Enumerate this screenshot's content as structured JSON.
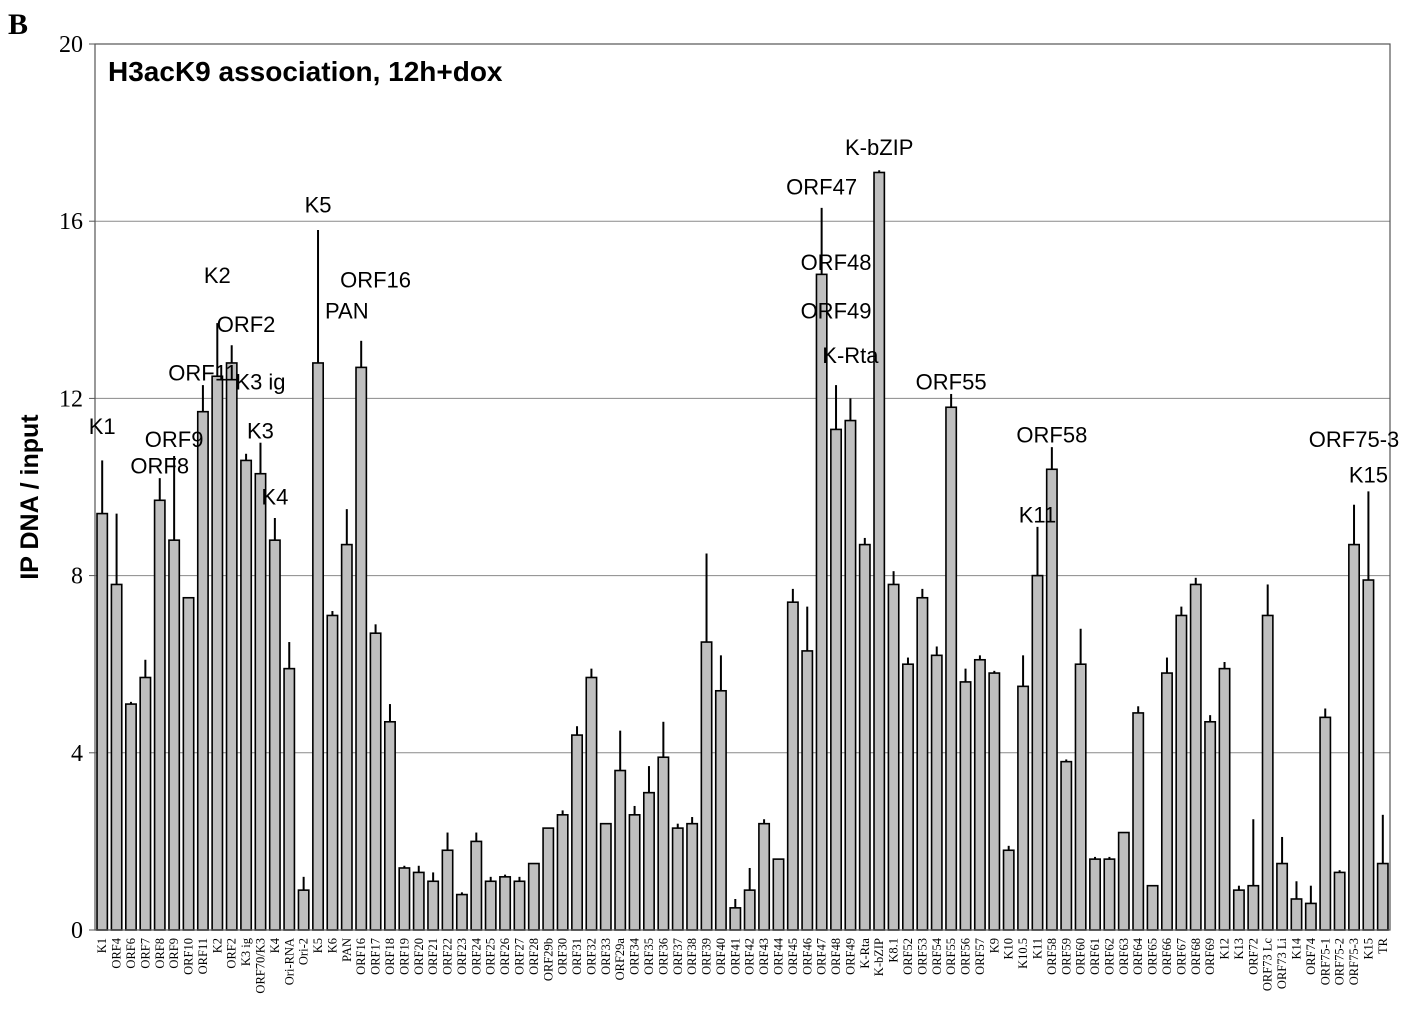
{
  "panel_label": "B",
  "chart_data": {
    "type": "bar",
    "title": "H3acK9 association, 12h+dox",
    "xlabel": "",
    "ylabel": "IP DNA / input",
    "ylim": [
      0,
      20
    ],
    "yticks": [
      0,
      4,
      8,
      12,
      16,
      20
    ],
    "grid": true,
    "bar_color": "#bfbfbf",
    "categories": [
      "K1",
      "ORF4",
      "ORF6",
      "ORF7",
      "ORF8",
      "ORF9",
      "ORF10",
      "ORF11",
      "K2",
      "ORF2",
      "K3 ig",
      "K3",
      "K4",
      "Ori-RNA",
      "Ori-2",
      "K5",
      "K6",
      "PAN",
      "ORF16",
      "ORF17",
      "ORF18",
      "ORF19",
      "ORF20",
      "ORF21",
      "ORF22",
      "ORF23",
      "ORF24",
      "ORF25",
      "ORF26",
      "ORF27",
      "ORF28",
      "ORF29b",
      "ORF30",
      "ORF31",
      "ORF32",
      "ORF33",
      "ORF29a",
      "ORF34",
      "ORF35",
      "ORF36",
      "ORF37",
      "ORF38",
      "ORF39",
      "ORF40",
      "ORF41",
      "ORF42",
      "ORF43",
      "ORF44",
      "ORF45",
      "ORF46",
      "ORF47",
      "ORF48",
      "ORF49",
      "K-Rta",
      "K-bZIP",
      "K8.1",
      "ORF52",
      "ORF53",
      "ORF54",
      "ORF55",
      "ORF56",
      "ORF57",
      "K9",
      "K10",
      "K10.5",
      "K11",
      "ORF58",
      "ORF59",
      "ORF60",
      "ORF61",
      "ORF62",
      "ORF63",
      "ORF64",
      "ORF65",
      "ORF66",
      "ORF67",
      "ORF68",
      "ORF69",
      "K12",
      "K13",
      "ORF72",
      "ORF73 Lc",
      "ORF73 Li",
      "K14",
      "ORF74",
      "ORF75-1",
      "ORF75-2",
      "ORF75-3",
      "K15",
      "TR"
    ],
    "tick_labels": [
      "K1",
      "ORF4",
      "ORF6",
      "ORF7",
      "ORF8",
      "ORF9",
      "ORF10",
      "ORF11",
      "K2",
      "ORF2",
      "K3 ig",
      "ORF70/K3",
      "K4",
      "Ori-RNA",
      "Ori-2",
      "K5",
      "K6",
      "PAN",
      "ORF16",
      "ORF17",
      "ORF18",
      "ORF19",
      "ORF20",
      "ORF21",
      "ORF22",
      "ORF23",
      "ORF24",
      "ORF25",
      "ORF26",
      "ORF27",
      "ORF28",
      "ORF29b",
      "ORF30",
      "ORF31",
      "ORF32",
      "ORF33",
      "ORF29a",
      "ORF34",
      "ORF35",
      "ORF36",
      "ORF37",
      "ORF38",
      "ORF39",
      "ORF40",
      "ORF41",
      "ORF42",
      "ORF43",
      "ORF44",
      "ORF45",
      "ORF46",
      "ORF47",
      "ORF48",
      "ORF49",
      "K-Rta",
      "K-bZIP",
      "K8.1",
      "ORF52",
      "ORF53",
      "ORF54",
      "ORF55",
      "ORF56",
      "ORF57",
      "K9",
      "K10",
      "K10.5",
      "K11",
      "ORF58",
      "ORF59",
      "ORF60",
      "ORF61",
      "ORF62",
      "ORF63",
      "ORF64",
      "ORF65",
      "ORF66",
      "ORF67",
      "ORF68",
      "ORF69",
      "K12",
      "K13",
      "ORF72",
      "ORF73 Lc",
      "ORF73 Li",
      "K14",
      "ORF74",
      "ORF75-1",
      "ORF75-2",
      "ORF75-3",
      "K15",
      "TR"
    ],
    "values": [
      9.4,
      7.8,
      5.1,
      5.7,
      9.7,
      8.8,
      7.5,
      11.7,
      12.5,
      12.8,
      10.6,
      10.3,
      8.8,
      5.9,
      0.9,
      12.8,
      7.1,
      8.7,
      12.7,
      6.7,
      4.7,
      1.4,
      1.3,
      1.1,
      1.8,
      0.8,
      2.0,
      1.1,
      1.2,
      1.1,
      1.5,
      2.3,
      2.6,
      4.4,
      5.7,
      2.4,
      3.6,
      2.6,
      3.1,
      3.9,
      2.3,
      2.4,
      6.5,
      5.4,
      0.5,
      0.9,
      2.4,
      1.6,
      7.4,
      6.3,
      14.8,
      11.3,
      11.5,
      8.7,
      17.1,
      7.8,
      6.0,
      7.5,
      6.2,
      11.8,
      5.6,
      6.1,
      5.8,
      1.8,
      5.5,
      8.0,
      10.4,
      3.8,
      6.0,
      1.6,
      1.6,
      2.2,
      4.9,
      1.0,
      5.8,
      7.1,
      7.8,
      4.7,
      5.9,
      0.9,
      1.0,
      7.1,
      1.5,
      0.7,
      0.6,
      4.8,
      1.3,
      8.7,
      7.9,
      1.5
    ],
    "errors": [
      1.2,
      1.6,
      0.05,
      0.4,
      0.5,
      1.9,
      0,
      0.6,
      1.2,
      0.4,
      0.15,
      0.7,
      0.5,
      0.6,
      0.3,
      3.0,
      0.1,
      0.8,
      0.6,
      0.2,
      0.4,
      0.05,
      0.15,
      0.2,
      0.4,
      0.05,
      0.2,
      0.1,
      0.05,
      0.1,
      0,
      0,
      0.1,
      0.2,
      0.2,
      0,
      0.9,
      0.2,
      0.6,
      0.8,
      0.1,
      0.15,
      2.0,
      0.8,
      0.2,
      0.5,
      0.1,
      0,
      0.3,
      1.0,
      1.5,
      1.0,
      0.5,
      0.15,
      0.05,
      0.3,
      0.15,
      0.2,
      0.2,
      0.3,
      0.3,
      0.1,
      0.05,
      0.1,
      0.7,
      1.1,
      0.5,
      0.05,
      0.8,
      0.05,
      0.05,
      0,
      0.15,
      0,
      0.35,
      0.2,
      0.15,
      0.15,
      0.15,
      0.1,
      1.5,
      0.7,
      0.6,
      0.4,
      0.4,
      0.2,
      0.05,
      0.9,
      2.0,
      1.1
    ],
    "annotations": [
      {
        "text": "K1",
        "bar": 0,
        "level": 11.2
      },
      {
        "text": "ORF9",
        "bar": 5,
        "level": 10.9
      },
      {
        "text": "ORF8",
        "bar": 4,
        "level": 10.3
      },
      {
        "text": "ORF11",
        "bar": 7,
        "level": 12.4
      },
      {
        "text": "K2",
        "bar": 8,
        "level": 14.6
      },
      {
        "text": "ORF2",
        "bar": 10,
        "level": 13.5
      },
      {
        "text": "K3 ig",
        "bar": 11,
        "level": 12.2
      },
      {
        "text": "K3",
        "bar": 11,
        "level": 11.1
      },
      {
        "text": "K4",
        "bar": 12,
        "level": 9.6
      },
      {
        "text": "K5",
        "bar": 15,
        "level": 16.2
      },
      {
        "text": "PAN",
        "bar": 17,
        "level": 13.8
      },
      {
        "text": "ORF16",
        "bar": 19,
        "level": 14.5
      },
      {
        "text": "ORF47",
        "bar": 50,
        "level": 16.6
      },
      {
        "text": "ORF48",
        "bar": 51,
        "level": 14.9
      },
      {
        "text": "ORF49",
        "bar": 51,
        "level": 13.8
      },
      {
        "text": "K-Rta",
        "bar": 52,
        "level": 12.8
      },
      {
        "text": "K-bZIP",
        "bar": 54,
        "level": 17.5
      },
      {
        "text": "ORF55",
        "bar": 59,
        "level": 12.2
      },
      {
        "text": "ORF58",
        "bar": 66,
        "level": 11.0
      },
      {
        "text": "K11",
        "bar": 65,
        "level": 9.2
      },
      {
        "text": "ORF75-3",
        "bar": 87,
        "level": 10.9
      },
      {
        "text": "K15",
        "bar": 88,
        "level": 10.1
      }
    ]
  }
}
